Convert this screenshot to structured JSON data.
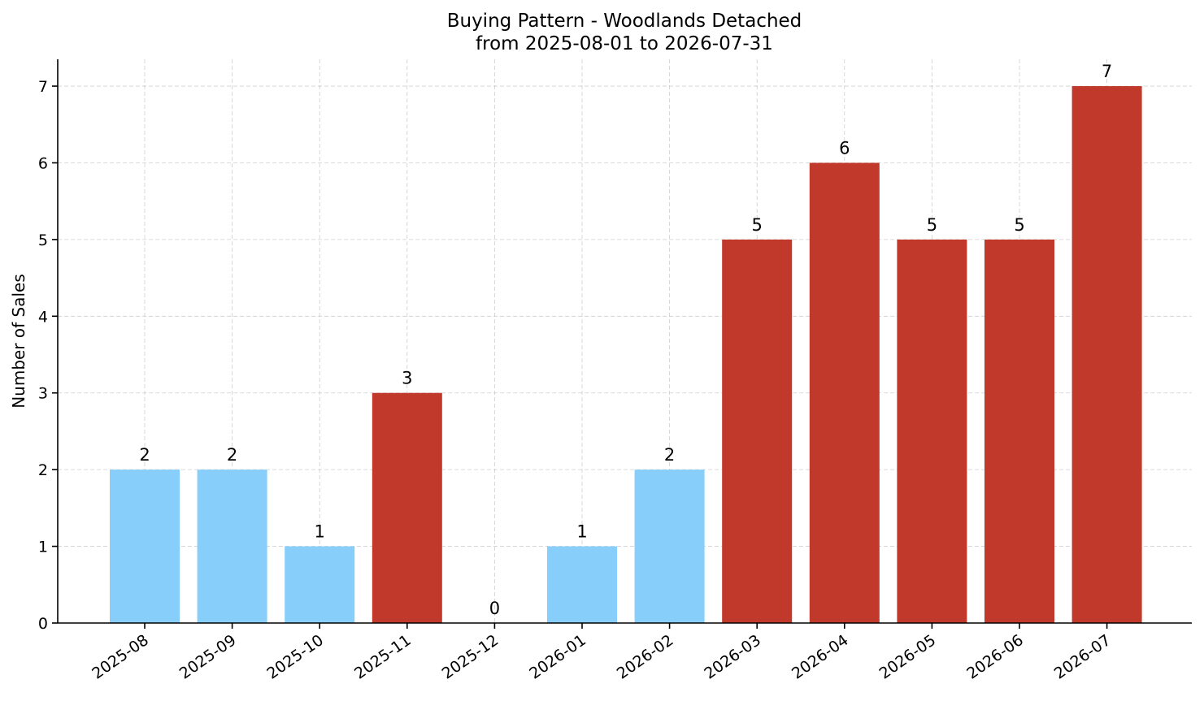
{
  "chart_data": {
    "type": "bar",
    "title": "Buying Pattern - Woodlands Detached",
    "subtitle": "from 2025-08-01 to 2026-07-31",
    "xlabel": "",
    "ylabel": "Number of Sales",
    "categories": [
      "2025-08",
      "2025-09",
      "2025-10",
      "2025-11",
      "2025-12",
      "2026-01",
      "2026-02",
      "2026-03",
      "2026-04",
      "2026-05",
      "2026-06",
      "2026-07"
    ],
    "values": [
      2,
      2,
      1,
      3,
      0,
      1,
      2,
      5,
      6,
      5,
      5,
      7
    ],
    "bar_colors": [
      "#87CEFA",
      "#87CEFA",
      "#87CEFA",
      "#C0392B",
      "#87CEFA",
      "#87CEFA",
      "#87CEFA",
      "#C0392B",
      "#C0392B",
      "#C0392B",
      "#C0392B",
      "#C0392B"
    ],
    "data_labels": [
      "2",
      "2",
      "1",
      "3",
      "0",
      "1",
      "2",
      "5",
      "6",
      "5",
      "5",
      "7"
    ],
    "yticks": [
      0,
      1,
      2,
      3,
      4,
      5,
      6,
      7
    ],
    "ylim": [
      0,
      7.35
    ],
    "grid": true,
    "legend": false,
    "x_tick_rotation": "rotated about 35 degrees"
  }
}
